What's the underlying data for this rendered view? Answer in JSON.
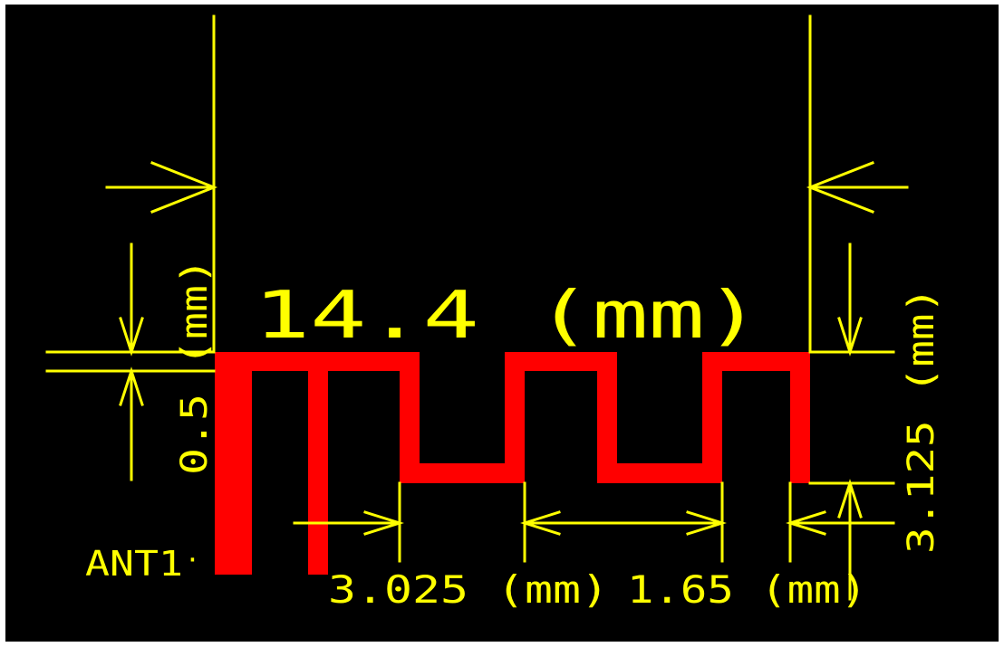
{
  "colors": {
    "background": "#000000",
    "border": "#ffffff",
    "trace": "#ff0000",
    "dimension": "#ffff00"
  },
  "labels": {
    "overall_width": "14.4 (mm)",
    "trace_width": "0.5 (mm)",
    "vertical_height": "3.125 (mm)",
    "gap_left": "3.025 (mm)",
    "gap_mid": "1.65 (mm)",
    "designator": "ANT1",
    "designator_dot": "·"
  }
}
